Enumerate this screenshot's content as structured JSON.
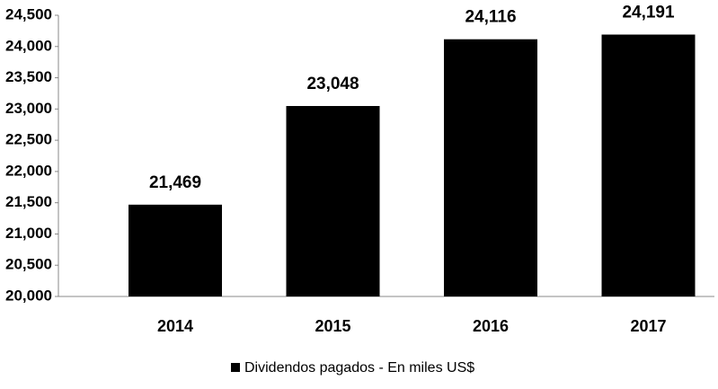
{
  "chart_data": {
    "type": "bar",
    "categories": [
      "2014",
      "2015",
      "2016",
      "2017"
    ],
    "series": [
      {
        "name": "Dividendos pagados - En miles US$",
        "color": "#000000",
        "values": [
          21469,
          23048,
          24116,
          24191
        ],
        "value_labels": [
          "21,469",
          "23,048",
          "24,116",
          "24,191"
        ]
      }
    ],
    "ylim": [
      20000,
      24500
    ],
    "yticks": [
      {
        "value": 20000,
        "label": "20,000"
      },
      {
        "value": 20500,
        "label": "20,500"
      },
      {
        "value": 21000,
        "label": "21,000"
      },
      {
        "value": 21500,
        "label": "21,500"
      },
      {
        "value": 22000,
        "label": "22,000"
      },
      {
        "value": 22500,
        "label": "22,500"
      },
      {
        "value": 23000,
        "label": "23,000"
      },
      {
        "value": 23500,
        "label": "23,500"
      },
      {
        "value": 24000,
        "label": "24,000"
      },
      {
        "value": 24500,
        "label": "24,500"
      }
    ],
    "grid": false,
    "legend": "bottom"
  }
}
